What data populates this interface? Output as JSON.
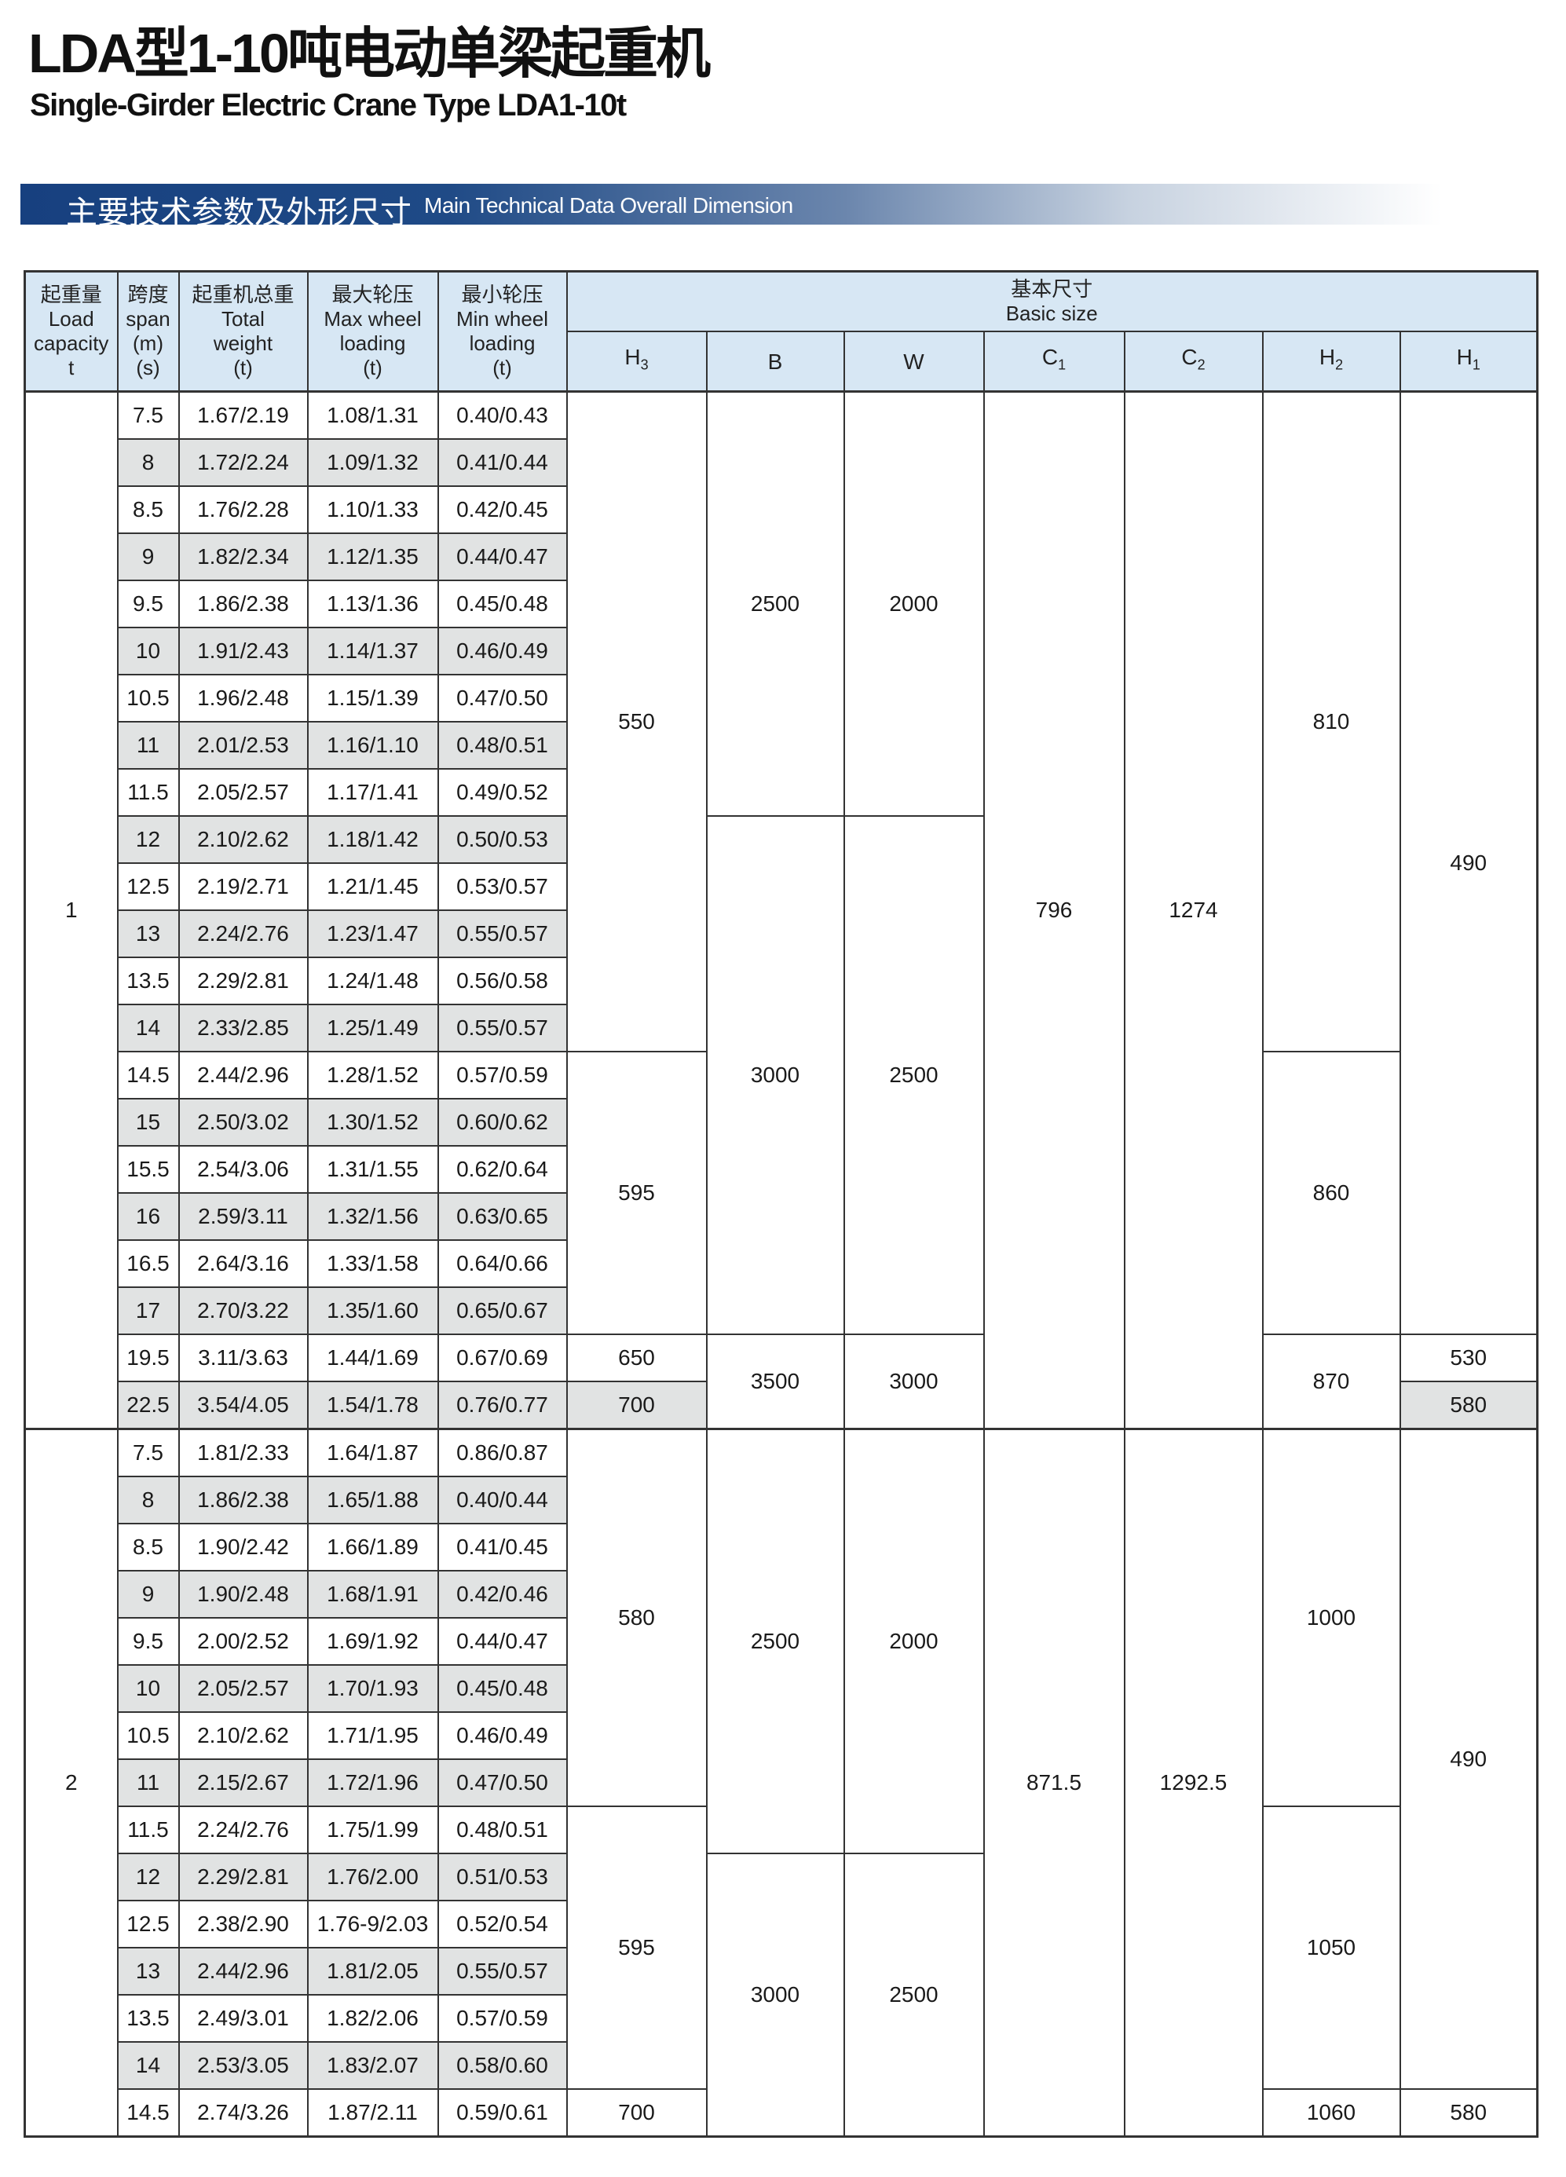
{
  "header": {
    "title": "LDA型1-10吨电动单梁起重机",
    "subtitle": "Single-Girder Electric Crane Type LDA1-10t"
  },
  "banner": {
    "title_cn": "主要技术参数及外形尺寸",
    "title_en": "Main Technical Data Overall Dimension",
    "color": "#17407f"
  },
  "table": {
    "columns": {
      "load": [
        "起重量",
        "Load",
        "capacity",
        "t"
      ],
      "span": [
        "跨度",
        "span",
        "(m)",
        "(s)"
      ],
      "weight": [
        "起重机总重",
        "Total",
        "weight",
        "(t)"
      ],
      "max_wheel": [
        "最大轮压",
        "Max wheel",
        "loading",
        "(t)"
      ],
      "min_wheel": [
        "最小轮压",
        "Min wheel",
        "loading",
        "(t)"
      ],
      "basic_size": [
        "基本尺寸",
        "Basic size"
      ],
      "dims": [
        {
          "main": "H",
          "sub": "3"
        },
        {
          "main": "B",
          "sub": ""
        },
        {
          "main": "W",
          "sub": ""
        },
        {
          "main": "C",
          "sub": "1"
        },
        {
          "main": "C",
          "sub": "2"
        },
        {
          "main": "H",
          "sub": "2"
        },
        {
          "main": "H",
          "sub": "1"
        }
      ]
    },
    "shade_color": "#e1e3e3",
    "header_color": "#d7e7f4",
    "sections": [
      {
        "load": "1",
        "rows": [
          [
            "7.5",
            "1.67/2.19",
            "1.08/1.31",
            "0.40/0.43"
          ],
          [
            "8",
            "1.72/2.24",
            "1.09/1.32",
            "0.41/0.44"
          ],
          [
            "8.5",
            "1.76/2.28",
            "1.10/1.33",
            "0.42/0.45"
          ],
          [
            "9",
            "1.82/2.34",
            "1.12/1.35",
            "0.44/0.47"
          ],
          [
            "9.5",
            "1.86/2.38",
            "1.13/1.36",
            "0.45/0.48"
          ],
          [
            "10",
            "1.91/2.43",
            "1.14/1.37",
            "0.46/0.49"
          ],
          [
            "10.5",
            "1.96/2.48",
            "1.15/1.39",
            "0.47/0.50"
          ],
          [
            "11",
            "2.01/2.53",
            "1.16/1.10",
            "0.48/0.51"
          ],
          [
            "11.5",
            "2.05/2.57",
            "1.17/1.41",
            "0.49/0.52"
          ],
          [
            "12",
            "2.10/2.62",
            "1.18/1.42",
            "0.50/0.53"
          ],
          [
            "12.5",
            "2.19/2.71",
            "1.21/1.45",
            "0.53/0.57"
          ],
          [
            "13",
            "2.24/2.76",
            "1.23/1.47",
            "0.55/0.57"
          ],
          [
            "13.5",
            "2.29/2.81",
            "1.24/1.48",
            "0.56/0.58"
          ],
          [
            "14",
            "2.33/2.85",
            "1.25/1.49",
            "0.55/0.57"
          ],
          [
            "14.5",
            "2.44/2.96",
            "1.28/1.52",
            "0.57/0.59"
          ],
          [
            "15",
            "2.50/3.02",
            "1.30/1.52",
            "0.60/0.62"
          ],
          [
            "15.5",
            "2.54/3.06",
            "1.31/1.55",
            "0.62/0.64"
          ],
          [
            "16",
            "2.59/3.11",
            "1.32/1.56",
            "0.63/0.65"
          ],
          [
            "16.5",
            "2.64/3.16",
            "1.33/1.58",
            "0.64/0.66"
          ],
          [
            "17",
            "2.70/3.22",
            "1.35/1.60",
            "0.65/0.67"
          ],
          [
            "19.5",
            "3.11/3.63",
            "1.44/1.69",
            "0.67/0.69"
          ],
          [
            "22.5",
            "3.54/4.05",
            "1.54/1.78",
            "0.76/0.77"
          ]
        ],
        "dims": [
          [
            {
              "value": "550",
              "rows": 14
            },
            {
              "value": "595",
              "rows": 6
            },
            {
              "value": "650",
              "rows": 1
            },
            {
              "value": "700",
              "rows": 1
            }
          ],
          [
            {
              "value": "2500",
              "rows": 9
            },
            {
              "value": "3000",
              "rows": 11
            },
            {
              "value": "3500",
              "rows": 2
            }
          ],
          [
            {
              "value": "2000",
              "rows": 9
            },
            {
              "value": "2500",
              "rows": 11
            },
            {
              "value": "3000",
              "rows": 2
            }
          ],
          [
            {
              "value": "796",
              "rows": 22
            }
          ],
          [
            {
              "value": "1274",
              "rows": 22
            }
          ],
          [
            {
              "value": "810",
              "rows": 14
            },
            {
              "value": "860",
              "rows": 6
            },
            {
              "value": "870",
              "rows": 2
            }
          ],
          [
            {
              "value": "490",
              "rows": 20
            },
            {
              "value": "530",
              "rows": 1
            },
            {
              "value": "580",
              "rows": 1
            }
          ]
        ]
      },
      {
        "load": "2",
        "rows": [
          [
            "7.5",
            "1.81/2.33",
            "1.64/1.87",
            "0.86/0.87"
          ],
          [
            "8",
            "1.86/2.38",
            "1.65/1.88",
            "0.40/0.44"
          ],
          [
            "8.5",
            "1.90/2.42",
            "1.66/1.89",
            "0.41/0.45"
          ],
          [
            "9",
            "1.90/2.48",
            "1.68/1.91",
            "0.42/0.46"
          ],
          [
            "9.5",
            "2.00/2.52",
            "1.69/1.92",
            "0.44/0.47"
          ],
          [
            "10",
            "2.05/2.57",
            "1.70/1.93",
            "0.45/0.48"
          ],
          [
            "10.5",
            "2.10/2.62",
            "1.71/1.95",
            "0.46/0.49"
          ],
          [
            "11",
            "2.15/2.67",
            "1.72/1.96",
            "0.47/0.50"
          ],
          [
            "11.5",
            "2.24/2.76",
            "1.75/1.99",
            "0.48/0.51"
          ],
          [
            "12",
            "2.29/2.81",
            "1.76/2.00",
            "0.51/0.53"
          ],
          [
            "12.5",
            "2.38/2.90",
            "1.76-9/2.03",
            "0.52/0.54"
          ],
          [
            "13",
            "2.44/2.96",
            "1.81/2.05",
            "0.55/0.57"
          ],
          [
            "13.5",
            "2.49/3.01",
            "1.82/2.06",
            "0.57/0.59"
          ],
          [
            "14",
            "2.53/3.05",
            "1.83/2.07",
            "0.58/0.60"
          ],
          [
            "14.5",
            "2.74/3.26",
            "1.87/2.11",
            "0.59/0.61"
          ]
        ],
        "dims": [
          [
            {
              "value": "580",
              "rows": 8
            },
            {
              "value": "595",
              "rows": 6
            },
            {
              "value": "700",
              "rows": 1
            }
          ],
          [
            {
              "value": "2500",
              "rows": 9
            },
            {
              "value": "3000",
              "rows": 6
            }
          ],
          [
            {
              "value": "2000",
              "rows": 9
            },
            {
              "value": "2500",
              "rows": 6
            }
          ],
          [
            {
              "value": "871.5",
              "rows": 15
            }
          ],
          [
            {
              "value": "1292.5",
              "rows": 15
            }
          ],
          [
            {
              "value": "1000",
              "rows": 8
            },
            {
              "value": "1050",
              "rows": 6
            },
            {
              "value": "1060",
              "rows": 1
            }
          ],
          [
            {
              "value": "490",
              "rows": 14
            },
            {
              "value": "580",
              "rows": 1
            }
          ]
        ]
      }
    ]
  }
}
